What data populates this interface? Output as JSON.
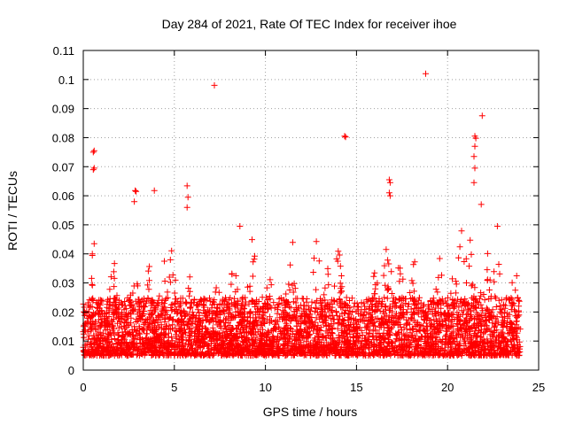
{
  "chart_data": {
    "type": "scatter",
    "title": "Day 284 of 2021, Rate Of TEC Index for receiver ihoe",
    "xlabel": "GPS time / hours",
    "ylabel": "ROTI / TECUs",
    "xlim": [
      0,
      25
    ],
    "ylim": [
      0,
      0.11
    ],
    "xticks": [
      "0",
      "5",
      "10",
      "15",
      "20",
      "25"
    ],
    "yticks": [
      "0",
      "0.01",
      "0.02",
      "0.03",
      "0.04",
      "0.05",
      "0.06",
      "0.07",
      "0.08",
      "0.09",
      "0.1",
      "0.11"
    ],
    "grid": true,
    "marker": "+",
    "series_color": "#ff0000",
    "baseline_band": [
      0.005,
      0.025
    ],
    "x_range_of_samples": [
      0,
      24
    ],
    "notable_points": [
      {
        "x": 0.55,
        "y": 0.075
      },
      {
        "x": 0.6,
        "y": 0.0755
      },
      {
        "x": 0.55,
        "y": 0.069
      },
      {
        "x": 0.6,
        "y": 0.0695
      },
      {
        "x": 0.6,
        "y": 0.0435
      },
      {
        "x": 2.85,
        "y": 0.0618
      },
      {
        "x": 2.9,
        "y": 0.0615
      },
      {
        "x": 2.8,
        "y": 0.058
      },
      {
        "x": 3.9,
        "y": 0.0618
      },
      {
        "x": 5.7,
        "y": 0.0634
      },
      {
        "x": 5.75,
        "y": 0.0595
      },
      {
        "x": 5.7,
        "y": 0.056
      },
      {
        "x": 7.2,
        "y": 0.098
      },
      {
        "x": 8.6,
        "y": 0.0495
      },
      {
        "x": 14.35,
        "y": 0.0805
      },
      {
        "x": 14.4,
        "y": 0.0802
      },
      {
        "x": 16.8,
        "y": 0.0655
      },
      {
        "x": 16.85,
        "y": 0.0645
      },
      {
        "x": 16.8,
        "y": 0.061
      },
      {
        "x": 16.85,
        "y": 0.06
      },
      {
        "x": 18.8,
        "y": 0.102
      },
      {
        "x": 21.5,
        "y": 0.0805
      },
      {
        "x": 21.55,
        "y": 0.0798
      },
      {
        "x": 21.5,
        "y": 0.077
      },
      {
        "x": 21.45,
        "y": 0.0735
      },
      {
        "x": 21.5,
        "y": 0.0695
      },
      {
        "x": 21.45,
        "y": 0.0645
      },
      {
        "x": 21.9,
        "y": 0.0875
      },
      {
        "x": 21.85,
        "y": 0.057
      }
    ],
    "activity_peaks": [
      {
        "x": 0.6,
        "peak": 0.045
      },
      {
        "x": 1.7,
        "peak": 0.04
      },
      {
        "x": 2.9,
        "peak": 0.045
      },
      {
        "x": 3.5,
        "peak": 0.04
      },
      {
        "x": 4.4,
        "peak": 0.039
      },
      {
        "x": 4.9,
        "peak": 0.045
      },
      {
        "x": 5.8,
        "peak": 0.052
      },
      {
        "x": 7.4,
        "peak": 0.034
      },
      {
        "x": 8.3,
        "peak": 0.04
      },
      {
        "x": 9.3,
        "peak": 0.046
      },
      {
        "x": 10.1,
        "peak": 0.04
      },
      {
        "x": 11.4,
        "peak": 0.048
      },
      {
        "x": 12.8,
        "peak": 0.045
      },
      {
        "x": 13.3,
        "peak": 0.041
      },
      {
        "x": 14.0,
        "peak": 0.044
      },
      {
        "x": 16.0,
        "peak": 0.038
      },
      {
        "x": 16.7,
        "peak": 0.047
      },
      {
        "x": 17.4,
        "peak": 0.042
      },
      {
        "x": 18.2,
        "peak": 0.038
      },
      {
        "x": 19.5,
        "peak": 0.04
      },
      {
        "x": 20.5,
        "peak": 0.048
      },
      {
        "x": 20.8,
        "peak": 0.058
      },
      {
        "x": 21.2,
        "peak": 0.05
      },
      {
        "x": 22.1,
        "peak": 0.045
      },
      {
        "x": 22.7,
        "peak": 0.052
      },
      {
        "x": 23.7,
        "peak": 0.035
      }
    ]
  }
}
